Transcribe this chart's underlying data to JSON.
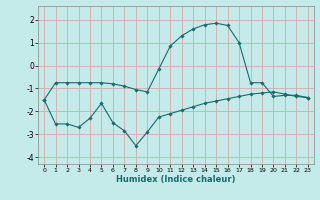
{
  "title": "",
  "xlabel": "Humidex (Indice chaleur)",
  "bg_color": "#c5eaea",
  "grid_color": "#d4aaaa",
  "line_color": "#1a6b6b",
  "xlim": [
    -0.5,
    23.5
  ],
  "ylim": [
    -4.3,
    2.6
  ],
  "xticks": [
    0,
    1,
    2,
    3,
    4,
    5,
    6,
    7,
    8,
    9,
    10,
    11,
    12,
    13,
    14,
    15,
    16,
    17,
    18,
    19,
    20,
    21,
    22,
    23
  ],
  "yticks": [
    -4,
    -3,
    -2,
    -1,
    0,
    1,
    2
  ],
  "line1_x": [
    0,
    1,
    2,
    3,
    4,
    5,
    6,
    7,
    8,
    9,
    10,
    11,
    12,
    13,
    14,
    15,
    16,
    17,
    18,
    19,
    20,
    21,
    22,
    23
  ],
  "line1_y": [
    -1.5,
    -0.75,
    -0.75,
    -0.75,
    -0.75,
    -0.75,
    -0.8,
    -0.9,
    -1.05,
    -1.15,
    -0.15,
    0.85,
    1.3,
    1.6,
    1.78,
    1.85,
    1.75,
    1.0,
    -0.75,
    -0.75,
    -1.35,
    -1.3,
    -1.3,
    -1.4
  ],
  "line2_x": [
    0,
    1,
    2,
    3,
    4,
    5,
    6,
    7,
    8,
    9,
    10,
    11,
    12,
    13,
    14,
    15,
    16,
    17,
    18,
    19,
    20,
    21,
    22,
    23
  ],
  "line2_y": [
    -1.5,
    -2.55,
    -2.55,
    -2.7,
    -2.3,
    -1.65,
    -2.5,
    -2.85,
    -3.5,
    -2.9,
    -2.25,
    -2.1,
    -1.95,
    -1.8,
    -1.65,
    -1.55,
    -1.45,
    -1.35,
    -1.25,
    -1.2,
    -1.15,
    -1.25,
    -1.35,
    -1.4
  ]
}
